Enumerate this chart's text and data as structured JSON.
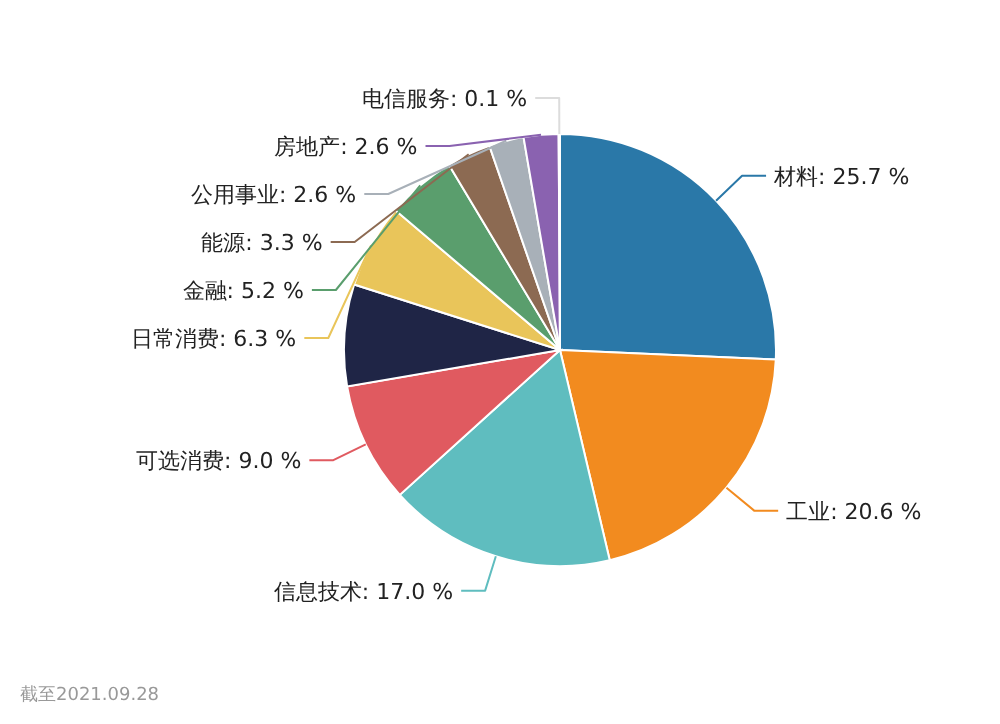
{
  "chart_data": {
    "type": "pie",
    "categories": [
      "材料",
      "工业",
      "信息技术",
      "可选消费",
      null,
      "日常消费",
      "金融",
      "能源",
      "公用事业",
      "房地产",
      "电信服务"
    ],
    "values": [
      25.7,
      20.6,
      17.0,
      9.0,
      7.6,
      6.3,
      5.2,
      3.3,
      2.6,
      2.6,
      0.1
    ],
    "value_labels": [
      "25.7 %",
      "20.6 %",
      "17.0 %",
      "9.0 %",
      null,
      "6.3 %",
      "5.2 %",
      "3.3 %",
      "2.6 %",
      "2.6 %",
      "0.1 %"
    ],
    "colors": [
      "#2a78a8",
      "#f28b1f",
      "#5fbdbf",
      "#e05a60",
      "#1f2546",
      "#e9c55a",
      "#5a9e6d",
      "#8c6a52",
      "#a8b0b8",
      "#8a62b0",
      "#dcdcdc"
    ],
    "annotations": [
      "截至2021.09.28"
    ]
  }
}
